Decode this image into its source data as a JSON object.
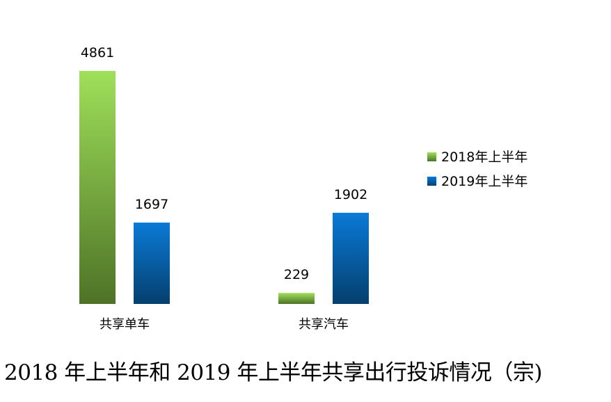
{
  "caption": "2018 年上半年和 2019 年上半年共享出行投诉情况（宗)",
  "chart_data": {
    "type": "bar",
    "title": "",
    "xlabel": "",
    "ylabel": "",
    "categories": [
      "共享单车",
      "共享汽车"
    ],
    "series": [
      {
        "name": "2018年上半年",
        "values": [
          4861,
          229
        ]
      },
      {
        "name": "2019年上半年",
        "values": [
          1697,
          1902
        ]
      }
    ],
    "ylim": [
      0,
      4861
    ],
    "grid": false,
    "legend": "right",
    "data_labels": true,
    "colors": {
      "series_2018_top": "#9fe05a",
      "series_2018_bottom": "#4e7227",
      "series_2019_top": "#0a7ad6",
      "series_2019_bottom": "#053f6e"
    }
  }
}
